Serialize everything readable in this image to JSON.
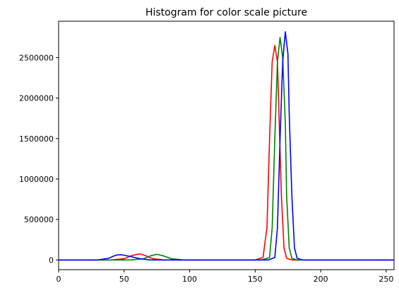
{
  "chart_data": {
    "type": "line",
    "title": "Histogram for color scale picture",
    "xlabel": "",
    "ylabel": "",
    "xlim": [
      0,
      256
    ],
    "ylim": [
      -120000,
      2950000
    ],
    "grid": false,
    "legend": "none",
    "xticks": [
      0,
      50,
      100,
      150,
      200,
      250
    ],
    "yticks": [
      0,
      500000,
      1000000,
      1500000,
      2000000,
      2500000
    ],
    "xtick_labels": [
      "0",
      "50",
      "100",
      "150",
      "200",
      "250"
    ],
    "ytick_labels": [
      "0",
      "500000",
      "1000000",
      "1500000",
      "2000000",
      "2500000"
    ],
    "series": [
      {
        "color": "#ff0000",
        "x": [
          0,
          40,
          50,
          56,
          62,
          66,
          72,
          80,
          150,
          156,
          159,
          161,
          163,
          165,
          167,
          168,
          170,
          172,
          174,
          178,
          256
        ],
        "y": [
          0,
          0,
          15000,
          55000,
          75000,
          55000,
          15000,
          0,
          0,
          30000,
          400000,
          1500000,
          2450000,
          2650000,
          2450000,
          1900000,
          800000,
          150000,
          20000,
          0,
          0
        ]
      },
      {
        "color": "#008000",
        "x": [
          0,
          55,
          65,
          70,
          75,
          80,
          86,
          95,
          155,
          161,
          163,
          165,
          167,
          169,
          171,
          173,
          174,
          176,
          178,
          182,
          256
        ],
        "y": [
          0,
          0,
          15000,
          50000,
          70000,
          50000,
          15000,
          0,
          0,
          30000,
          400000,
          1500000,
          2450000,
          2750000,
          2500000,
          1700000,
          800000,
          150000,
          20000,
          0,
          0
        ]
      },
      {
        "color": "#0000ff",
        "x": [
          0,
          30,
          38,
          44,
          48,
          54,
          62,
          70,
          160,
          165,
          167,
          169,
          171,
          173,
          175,
          176,
          178,
          180,
          182,
          186,
          256
        ],
        "y": [
          0,
          0,
          20000,
          60000,
          65000,
          45000,
          15000,
          0,
          0,
          30000,
          400000,
          1500000,
          2450000,
          2820000,
          2550000,
          1800000,
          800000,
          150000,
          20000,
          0,
          0
        ]
      }
    ]
  }
}
